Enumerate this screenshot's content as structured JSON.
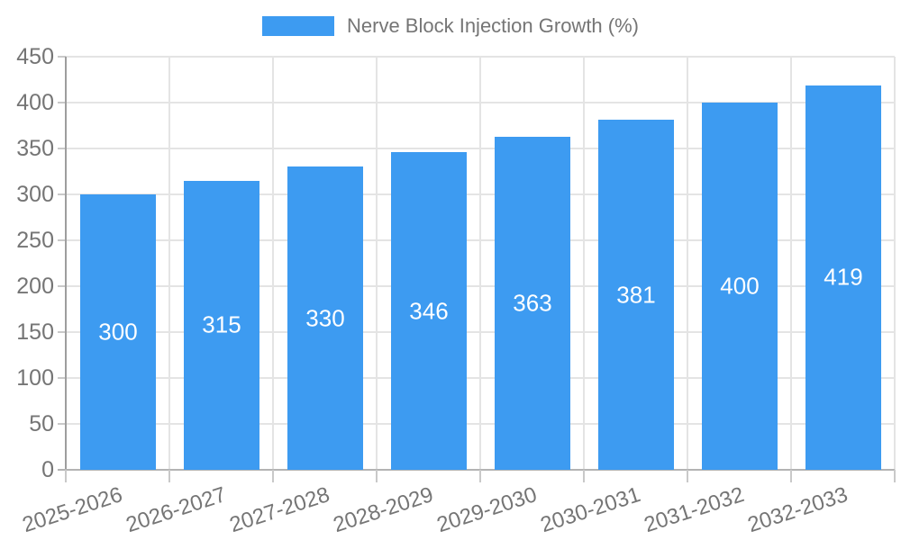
{
  "colors": {
    "bar": "#3d9bf1",
    "grid": "#e4e4e4",
    "axis_line": "#9e9e9e",
    "bottom_axis_line": "#b3b3b3",
    "tick": "#c9c9c9",
    "axis_text": "#757575",
    "value_text": "#ffffff",
    "background": "#ffffff"
  },
  "chart_data": {
    "type": "bar",
    "series_name": "Nerve Block Injection Growth (%)",
    "categories": [
      "2025-2026",
      "2026-2027",
      "2027-2028",
      "2028-2029",
      "2029-2030",
      "2030-2031",
      "2031-2032",
      "2032-2033"
    ],
    "values": [
      300,
      315,
      330,
      346,
      363,
      381,
      400,
      419
    ],
    "value_labels": [
      "300",
      "315",
      "330",
      "346",
      "363",
      "381",
      "400",
      "419"
    ],
    "ylim": [
      0,
      450
    ],
    "ytick_step": 50,
    "yticks": [
      0,
      50,
      100,
      150,
      200,
      250,
      300,
      350,
      400,
      450
    ],
    "grid": true,
    "legend_position": "top-center",
    "value_label_position": "inside-center",
    "x_label_rotation_deg": -18
  }
}
